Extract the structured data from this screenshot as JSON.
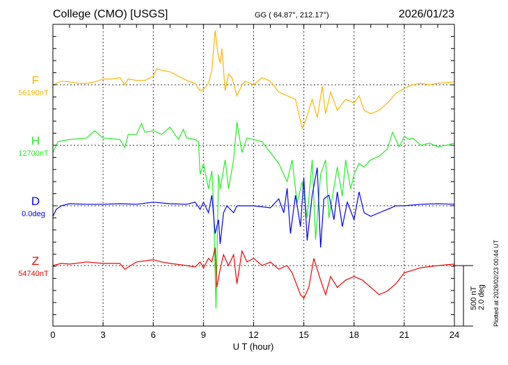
{
  "header": {
    "station": "College (CMO)  [USGS]",
    "coords": "GG ( 64.87°, 212.17°)",
    "date": "2026/01/23"
  },
  "footer": {
    "plotted": "Plotted at 2026/02/23 00:44 UT"
  },
  "chart_data": {
    "type": "line",
    "xlabel": "U T (hour)",
    "xlim": [
      0,
      24
    ],
    "xticks": [
      "0",
      "3",
      "6",
      "9",
      "12",
      "15",
      "18",
      "21",
      "24"
    ],
    "grid": true,
    "scale_bar": {
      "nT_label": "500 nT",
      "deg_label": "2.0 deg",
      "nT": 500,
      "deg": 2.0
    },
    "series": [
      {
        "name": "F",
        "baseline_label": "56190nT",
        "unit": "nT",
        "color": "#ffb400",
        "t": [
          0,
          0.5,
          1,
          1.5,
          2,
          2.5,
          3,
          3.5,
          4,
          4.3,
          4.5,
          5,
          5.5,
          6,
          6.2,
          6.5,
          7,
          7.5,
          8,
          8.5,
          8.8,
          9,
          9.3,
          9.5,
          9.7,
          9.85,
          10,
          10.1,
          10.3,
          10.5,
          10.7,
          11,
          11.3,
          11.5,
          12,
          12.5,
          13,
          13.5,
          14,
          14.5,
          14.9,
          15.1,
          15.5,
          15.8,
          16.1,
          16.3,
          16.6,
          17,
          17.5,
          18,
          18.3,
          18.6,
          19,
          19.5,
          20,
          20.5,
          21,
          21.5,
          22,
          22.5,
          23,
          23.5,
          24
        ],
        "v": [
          0,
          30,
          24,
          12,
          12,
          24,
          48,
          48,
          60,
          0,
          48,
          36,
          36,
          72,
          132,
          120,
          108,
          72,
          36,
          12,
          -48,
          -36,
          12,
          120,
          450,
          270,
          180,
          300,
          -48,
          90,
          60,
          -90,
          0,
          30,
          0,
          60,
          30,
          -60,
          -90,
          -120,
          -360,
          -300,
          -120,
          -270,
          -12,
          -240,
          -60,
          -210,
          -120,
          -150,
          -90,
          -210,
          -240,
          -210,
          -150,
          -72,
          -30,
          0,
          12,
          0,
          12,
          18,
          24
        ]
      },
      {
        "name": "H",
        "baseline_label": "12700nT",
        "unit": "nT",
        "color": "#22ee22",
        "t": [
          0,
          0.3,
          1,
          2,
          2.5,
          3,
          4,
          4.3,
          4.5,
          5,
          5.3,
          5.5,
          6,
          6.5,
          7,
          7.5,
          7.8,
          8,
          8.5,
          8.7,
          8.8,
          9,
          9.3,
          9.5,
          9.6,
          9.75,
          9.9,
          10,
          10.3,
          10.5,
          10.8,
          11,
          11.3,
          11.6,
          12,
          12.5,
          13,
          13.5,
          14,
          14.3,
          14.6,
          14.9,
          15.2,
          15.5,
          15.7,
          16,
          16.3,
          16.5,
          17,
          17.3,
          17.5,
          17.8,
          18,
          18.3,
          18.6,
          19,
          19.5,
          20,
          20.3,
          20.7,
          21,
          21.3,
          21.5,
          22,
          22.5,
          23,
          23.5,
          24
        ],
        "v": [
          -60,
          30,
          48,
          60,
          120,
          60,
          48,
          -18,
          90,
          90,
          180,
          108,
          120,
          90,
          150,
          48,
          132,
          60,
          48,
          30,
          -240,
          -150,
          -360,
          -210,
          -480,
          -1350,
          -240,
          -360,
          -120,
          -360,
          -120,
          192,
          -60,
          60,
          48,
          30,
          -60,
          -150,
          -300,
          -120,
          -480,
          -300,
          -600,
          -120,
          -780,
          -240,
          -120,
          -600,
          -180,
          -420,
          -120,
          -360,
          -240,
          -150,
          -180,
          -120,
          -90,
          -30,
          108,
          -12,
          72,
          48,
          60,
          0,
          18,
          -12,
          0,
          18
        ]
      },
      {
        "name": "D",
        "baseline_label": "0.0deg",
        "unit": "deg",
        "color": "#0000ee",
        "t": [
          0,
          0.2,
          0.5,
          1,
          2,
          3,
          4,
          5,
          6,
          7,
          8,
          8.5,
          8.8,
          9,
          9.3,
          9.5,
          9.7,
          9.9,
          10,
          10.2,
          10.4,
          10.8,
          11,
          12,
          13,
          13.5,
          13.8,
          14,
          14.2,
          14.5,
          14.8,
          15,
          15.2,
          15.5,
          15.8,
          16,
          16.2,
          16.5,
          16.8,
          17,
          17.3,
          17.6,
          18,
          18.3,
          18.6,
          19,
          19.5,
          20,
          20.5,
          21,
          22,
          23,
          24
        ],
        "v": [
          -0.35,
          -0.12,
          0,
          0.07,
          0.05,
          0.05,
          0.07,
          0.05,
          0.12,
          0.07,
          0.05,
          0.12,
          -0.12,
          0.12,
          -0.23,
          0.35,
          -0.92,
          -0.46,
          -1.26,
          -0.23,
          0,
          -0.23,
          0,
          0,
          -0.07,
          0.23,
          -0.23,
          0.58,
          -0.92,
          0.35,
          -0.69,
          0.92,
          -1.15,
          0.35,
          1.26,
          -1.38,
          0.23,
          0.35,
          -0.46,
          0.46,
          -0.69,
          0.12,
          -0.46,
          0.46,
          -0.23,
          -0.35,
          -0.23,
          -0.12,
          0,
          0,
          0.05,
          0.07,
          0.05
        ]
      },
      {
        "name": "Z",
        "baseline_label": "54740nT",
        "unit": "nT",
        "color": "#ee0000",
        "t": [
          0,
          0.5,
          1,
          2,
          3,
          4,
          4.3,
          5,
          6,
          6.5,
          7,
          8,
          8.5,
          8.8,
          9,
          9.3,
          9.5,
          9.7,
          9.8,
          10,
          10.2,
          10.5,
          10.8,
          11,
          11.3,
          11.6,
          12,
          12.5,
          13,
          13.5,
          14,
          14.3,
          14.8,
          15,
          15.3,
          15.6,
          16,
          16.3,
          16.6,
          17,
          17.5,
          18,
          18.5,
          19,
          19.5,
          20,
          20.5,
          21,
          22,
          23,
          24
        ],
        "v": [
          0,
          18,
          12,
          30,
          18,
          18,
          -30,
          30,
          48,
          30,
          18,
          0,
          -12,
          30,
          -18,
          60,
          30,
          150,
          -180,
          -30,
          90,
          0,
          90,
          -150,
          120,
          30,
          60,
          0,
          30,
          -30,
          0,
          -60,
          -240,
          -270,
          -180,
          60,
          -120,
          -240,
          -90,
          -180,
          -120,
          -90,
          -120,
          -180,
          -240,
          -210,
          -150,
          -60,
          -18,
          0,
          12
        ]
      }
    ]
  }
}
